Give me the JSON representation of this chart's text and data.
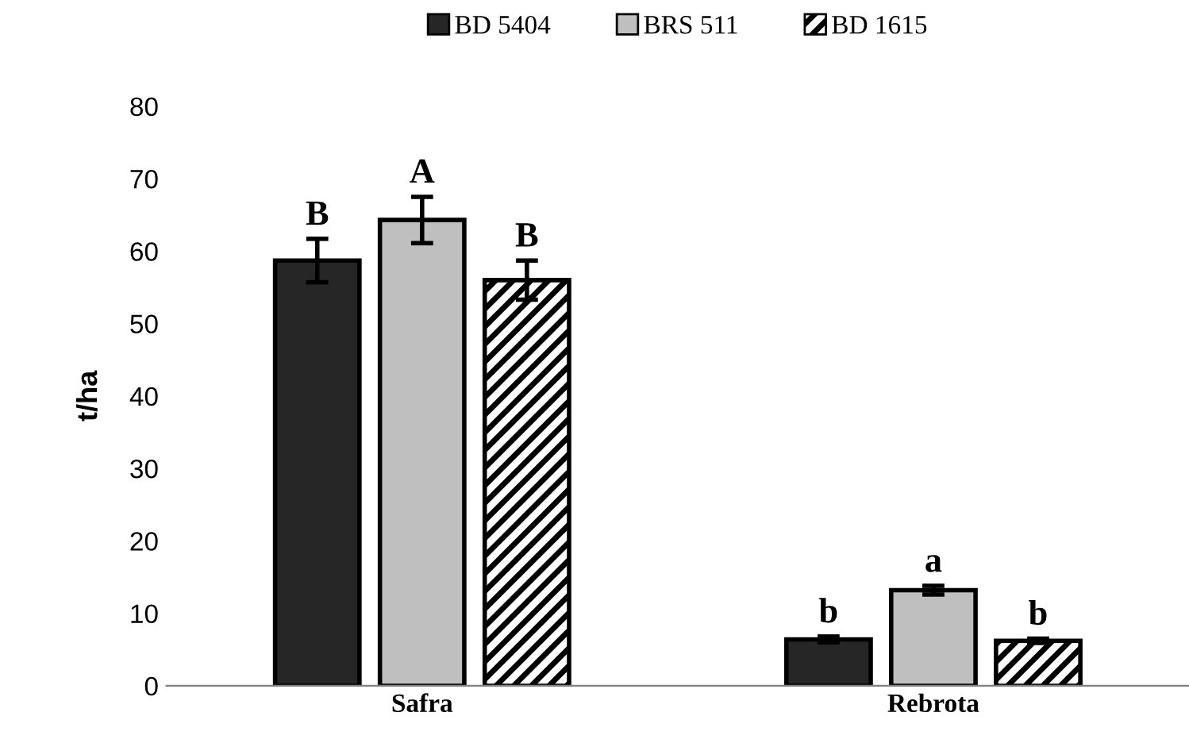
{
  "chart_data": {
    "type": "bar",
    "ylabel": "t/ha",
    "categories": [
      "Safra",
      "Rebrota"
    ],
    "series": [
      {
        "name": "BD 5404",
        "color": "#262626",
        "values": [
          58.7,
          6.4
        ],
        "errors": [
          3.0,
          0.4
        ]
      },
      {
        "name": "BRS 511",
        "color": "#bfbfbf",
        "values": [
          64.3,
          13.2
        ],
        "errors": [
          3.2,
          0.6
        ]
      },
      {
        "name": "BD 1615",
        "color": "#000000",
        "values": [
          56.0,
          6.2
        ],
        "errors": [
          2.7,
          0.3
        ]
      }
    ],
    "ylim": [
      0,
      80
    ],
    "yticks": [
      0,
      10,
      20,
      30,
      40,
      50,
      60,
      70,
      80
    ],
    "grid": false,
    "legend": "top",
    "annotations": [
      "B",
      "A",
      "B",
      "b",
      "a",
      "b"
    ]
  }
}
